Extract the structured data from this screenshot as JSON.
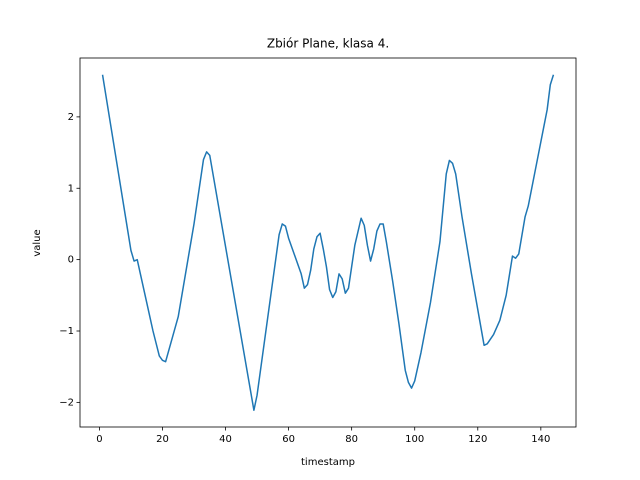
{
  "chart_data": {
    "type": "line",
    "title": "Zbiór Plane, klasa 4.",
    "x_label": "timestamp",
    "y_label": "value",
    "xlim": [
      -6.15,
      151.15
    ],
    "ylim": [
      -2.345,
      2.825
    ],
    "xticks": [
      0,
      20,
      40,
      60,
      80,
      100,
      120,
      140
    ],
    "yticks": [
      {
        "value": -2,
        "label": "−2"
      },
      {
        "value": -1,
        "label": "−1"
      },
      0,
      1,
      2
    ],
    "x": [
      1,
      10,
      11,
      12,
      13,
      15,
      17,
      19,
      20,
      21,
      25,
      30,
      33,
      34,
      35,
      49,
      50,
      57,
      58,
      59,
      60,
      62,
      64,
      65,
      66,
      67,
      68,
      69,
      70,
      71,
      72,
      73,
      74,
      75,
      76,
      77,
      78,
      79,
      80,
      81,
      83,
      84,
      85,
      86,
      87,
      88,
      89,
      90,
      91,
      93,
      95,
      97,
      98,
      99,
      100,
      102,
      105,
      108,
      110,
      111,
      112,
      113,
      115,
      118,
      121,
      122,
      123,
      125,
      127,
      129,
      131,
      132,
      133,
      135,
      136,
      138,
      142,
      143,
      144
    ],
    "series": [
      {
        "name": "value",
        "color": "#1f77b4",
        "values": [
          2.59,
          0.13,
          -0.02,
          0.0,
          -0.2,
          -0.6,
          -1.0,
          -1.35,
          -1.41,
          -1.43,
          -0.8,
          0.5,
          1.4,
          1.51,
          1.46,
          -2.11,
          -1.9,
          0.35,
          0.5,
          0.47,
          0.3,
          0.05,
          -0.2,
          -0.4,
          -0.35,
          -0.15,
          0.15,
          0.32,
          0.37,
          0.15,
          -0.1,
          -0.42,
          -0.53,
          -0.45,
          -0.2,
          -0.27,
          -0.47,
          -0.4,
          -0.1,
          0.2,
          0.58,
          0.48,
          0.2,
          -0.02,
          0.15,
          0.4,
          0.5,
          0.5,
          0.25,
          -0.3,
          -0.9,
          -1.55,
          -1.72,
          -1.8,
          -1.7,
          -1.3,
          -0.6,
          0.25,
          1.2,
          1.39,
          1.35,
          1.2,
          0.6,
          -0.2,
          -0.95,
          -1.2,
          -1.18,
          -1.05,
          -0.85,
          -0.5,
          0.05,
          0.02,
          0.08,
          0.6,
          0.75,
          1.2,
          2.1,
          2.45,
          2.59
        ]
      }
    ]
  }
}
